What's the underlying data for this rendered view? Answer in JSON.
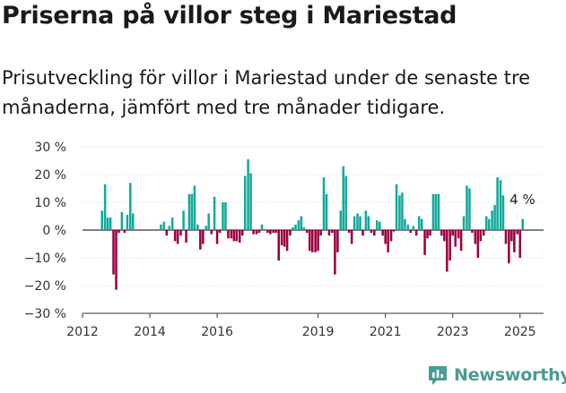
{
  "header": {
    "title": "Priserna på villor steg i Mariestad",
    "subtitle": "Prisutveckling för villor i Mariestad under de senaste tre månaderna, jämfört med tre månader tidigare."
  },
  "brand": {
    "name": "Newsworthy",
    "icon": "newsworthy-logo-icon",
    "color": "#4a9d92"
  },
  "chart_data": {
    "type": "bar",
    "positive_color": "#14a99b",
    "negative_color": "#990040",
    "ylim": [
      -30,
      30
    ],
    "yticks": [
      30,
      20,
      10,
      0,
      -10,
      -20,
      -30
    ],
    "ytick_labels": [
      "30 %",
      "20 %",
      "10 %",
      "0 %",
      "−10 %",
      "−20 %",
      "−30 %"
    ],
    "xlim": [
      2012,
      2025.7
    ],
    "xticks": [
      2012,
      2014,
      2016,
      2019,
      2021,
      2023,
      2025
    ],
    "xtick_labels": [
      "2012",
      "2014",
      "2016",
      "2019",
      "2021",
      "2023",
      "2025"
    ],
    "last_value_label": "4 %",
    "x": [
      2012.58,
      2012.67,
      2012.75,
      2012.83,
      2012.92,
      2013.0,
      2013.08,
      2013.17,
      2013.25,
      2013.33,
      2013.42,
      2013.5,
      2014.33,
      2014.42,
      2014.5,
      2014.58,
      2014.67,
      2014.75,
      2014.83,
      2014.92,
      2015.0,
      2015.08,
      2015.17,
      2015.25,
      2015.33,
      2015.42,
      2015.5,
      2015.58,
      2015.67,
      2015.75,
      2015.83,
      2015.92,
      2016.0,
      2016.08,
      2016.17,
      2016.25,
      2016.33,
      2016.42,
      2016.5,
      2016.58,
      2016.67,
      2016.75,
      2016.83,
      2016.92,
      2017.0,
      2017.08,
      2017.17,
      2017.25,
      2017.33,
      2017.42,
      2017.5,
      2017.58,
      2017.67,
      2017.75,
      2017.83,
      2017.92,
      2018.0,
      2018.08,
      2018.17,
      2018.25,
      2018.33,
      2018.42,
      2018.5,
      2018.58,
      2018.67,
      2018.75,
      2018.83,
      2018.92,
      2019.0,
      2019.08,
      2019.17,
      2019.25,
      2019.33,
      2019.42,
      2019.5,
      2019.58,
      2019.67,
      2019.75,
      2019.83,
      2019.92,
      2020.0,
      2020.08,
      2020.17,
      2020.25,
      2020.33,
      2020.42,
      2020.5,
      2020.58,
      2020.67,
      2020.75,
      2020.83,
      2020.92,
      2021.0,
      2021.08,
      2021.17,
      2021.25,
      2021.33,
      2021.42,
      2021.5,
      2021.58,
      2021.67,
      2021.75,
      2021.83,
      2021.92,
      2022.0,
      2022.08,
      2022.17,
      2022.25,
      2022.33,
      2022.42,
      2022.5,
      2022.58,
      2022.67,
      2022.75,
      2022.83,
      2022.92,
      2023.0,
      2023.08,
      2023.17,
      2023.25,
      2023.33,
      2023.42,
      2023.5,
      2023.58,
      2023.67,
      2023.75,
      2023.83,
      2023.92,
      2024.0,
      2024.08,
      2024.17,
      2024.25,
      2024.33,
      2024.42,
      2024.5,
      2024.58,
      2024.67,
      2024.75,
      2024.83,
      2024.92,
      2025.0,
      2025.08
    ],
    "values": [
      7,
      16.5,
      4.5,
      4.5,
      -16,
      -21.5,
      -1,
      6.5,
      -1,
      5.5,
      17,
      6,
      2,
      3,
      -2,
      1.5,
      4.5,
      -4,
      -5,
      -2,
      7,
      -4.5,
      13,
      13,
      16,
      2,
      -7,
      -5,
      1.5,
      6,
      -1.5,
      12,
      -5,
      -1,
      10,
      10,
      -3,
      -3,
      -4,
      -4,
      -4.5,
      -2,
      19.5,
      25.5,
      20.5,
      -1.5,
      -1.5,
      -1,
      2,
      0,
      -1,
      -1.5,
      -1,
      -1,
      -11,
      -5.5,
      -6,
      -7.5,
      -2,
      1,
      2,
      3.5,
      5,
      1,
      -1,
      -7.5,
      -8,
      -8,
      -7.5,
      -2,
      19,
      13,
      -2,
      -1,
      -16,
      -8,
      7,
      23,
      19.5,
      -1,
      -5,
      5,
      6,
      5,
      -2,
      7,
      5,
      -1,
      -2,
      3.5,
      3,
      -2,
      -5,
      -8,
      -4,
      -0.5,
      16.5,
      12.5,
      13.5,
      4,
      2,
      -1,
      1.5,
      -2,
      5,
      4,
      -9,
      -3,
      -2,
      13,
      13,
      13,
      -2,
      -4,
      -15,
      -11,
      -2,
      -6,
      -3,
      -7.5,
      5,
      16,
      15,
      -1,
      -5,
      -10,
      -4,
      -2,
      5,
      4,
      7,
      9,
      19,
      18,
      12.5,
      -5,
      -12,
      -4,
      -8,
      -1.5,
      -10,
      4
    ]
  }
}
